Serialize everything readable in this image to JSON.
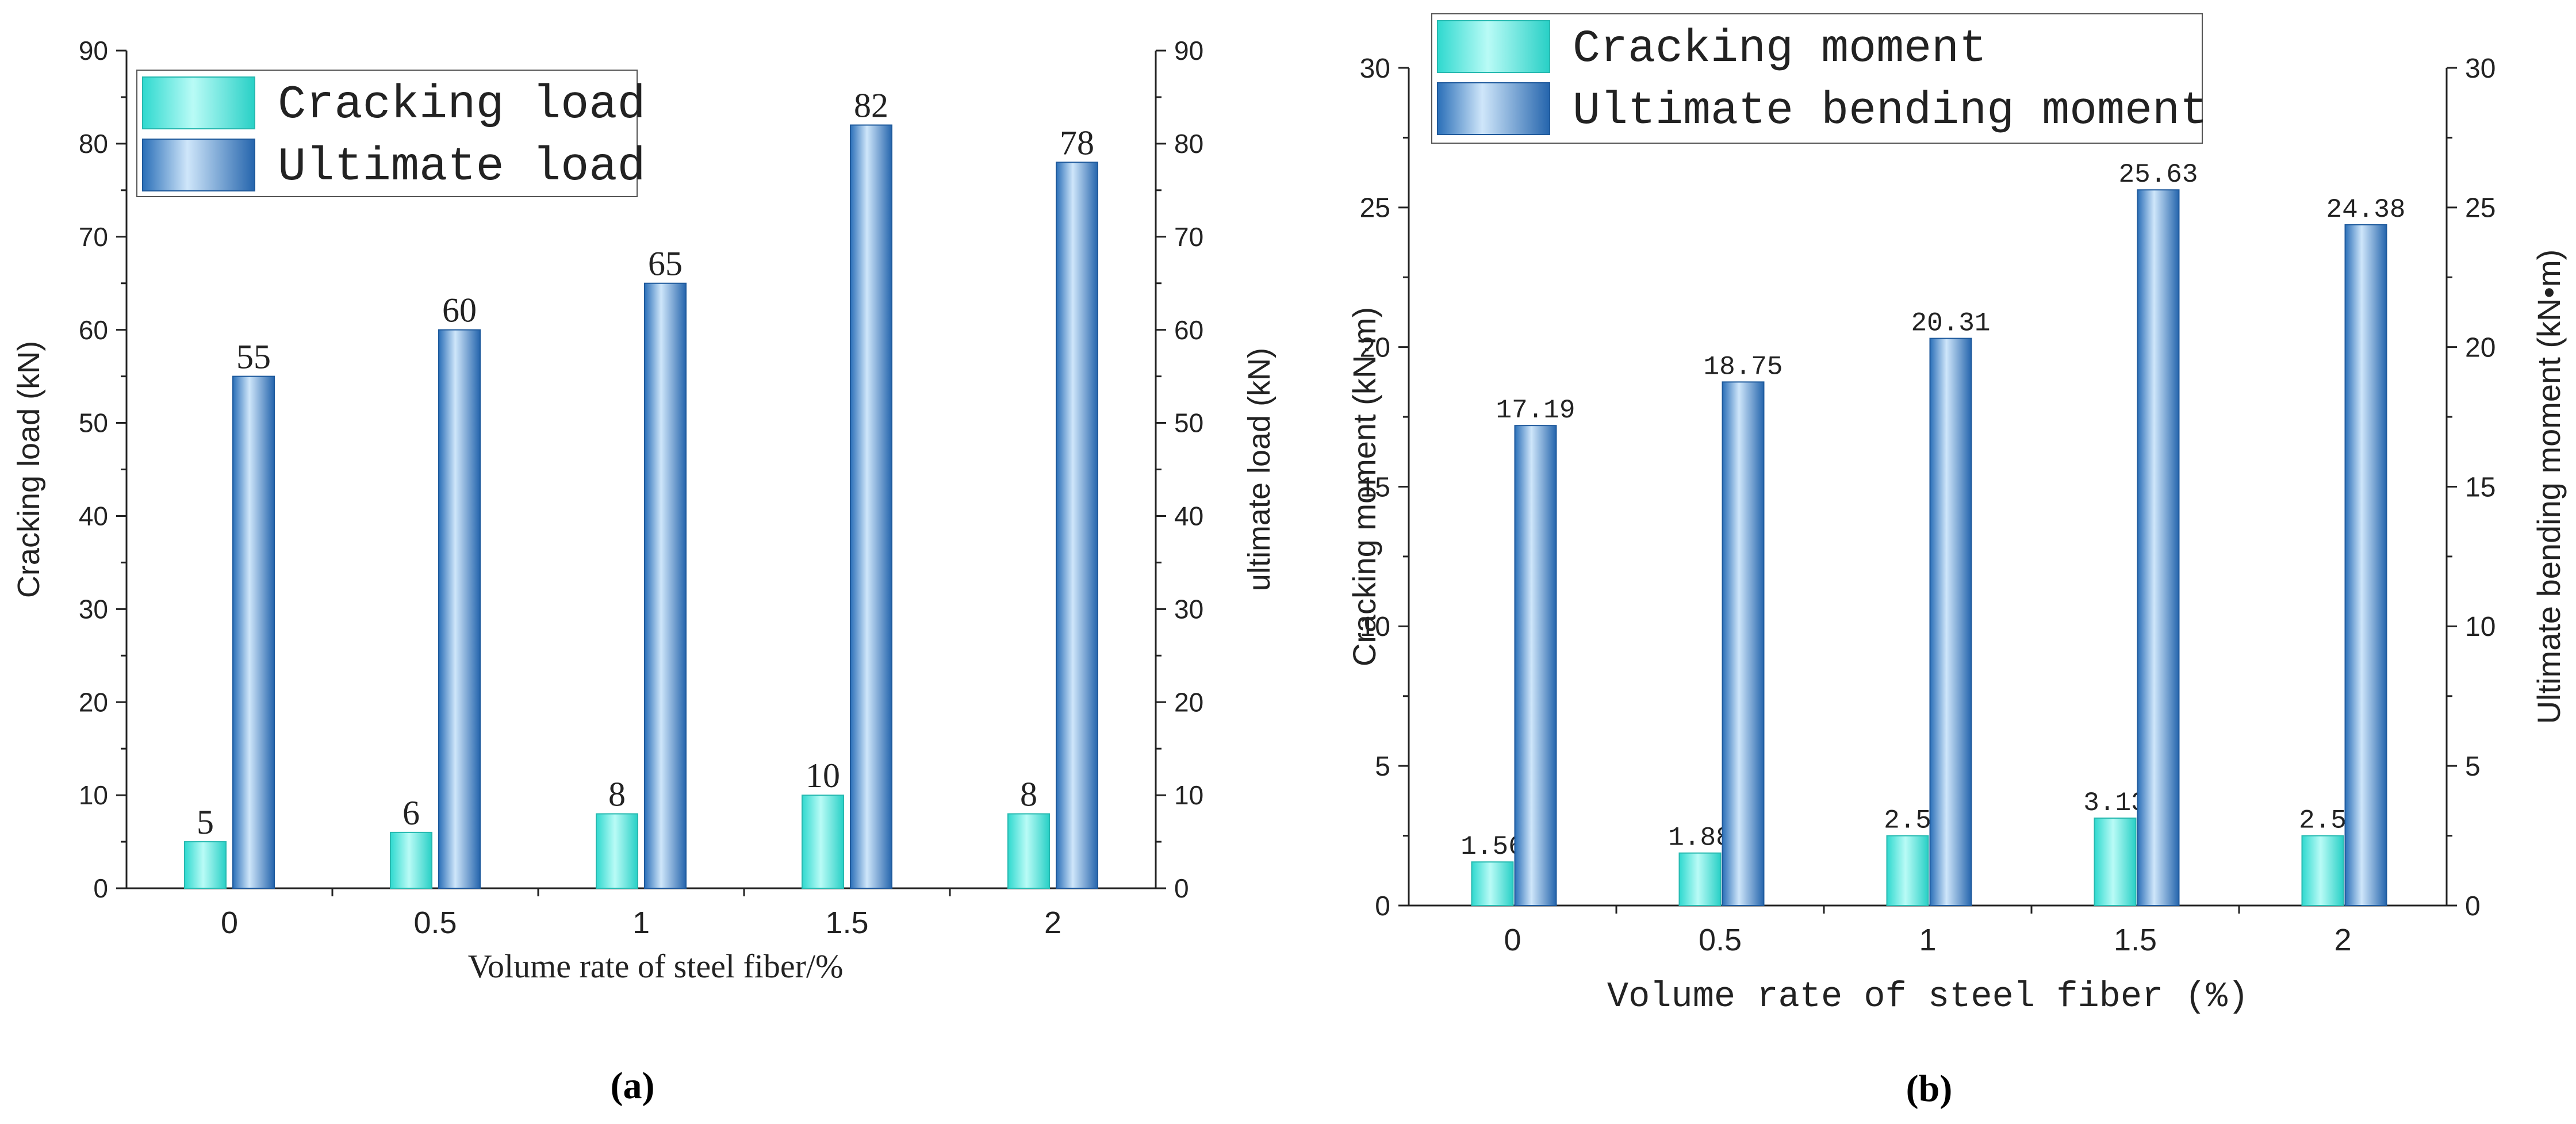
{
  "colors": {
    "cracking": "#3ee6dc",
    "ultimate": "#2f7bc4",
    "axis": "#222222"
  },
  "chart_data": [
    {
      "id": "a",
      "type": "bar",
      "panel_label": "(a)",
      "categories": [
        "0",
        "0.5",
        "1",
        "1.5",
        "2"
      ],
      "series": [
        {
          "name": "Cracking load",
          "axis": "left",
          "values": [
            5,
            6,
            8,
            10,
            8
          ],
          "labels": [
            "5",
            "6",
            "8",
            "10",
            "8"
          ]
        },
        {
          "name": "Ultimate load",
          "axis": "right",
          "values": [
            55,
            60,
            65,
            82,
            78
          ],
          "labels": [
            "55",
            "60",
            "65",
            "82",
            "78"
          ]
        }
      ],
      "xlabel": "Volume rate of steel fiber/%",
      "ylabel_left": "Cracking load (kN)",
      "ylabel_right": "ultimate load (kN)",
      "ylim": [
        0,
        90
      ],
      "yticks": [
        "0",
        "10",
        "20",
        "30",
        "40",
        "50",
        "60",
        "70",
        "80",
        "90"
      ],
      "legend_position": "top-left"
    },
    {
      "id": "b",
      "type": "bar",
      "panel_label": "(b)",
      "categories": [
        "0",
        "0.5",
        "1",
        "1.5",
        "2"
      ],
      "series": [
        {
          "name": "Cracking moment",
          "axis": "left",
          "values": [
            1.56,
            1.88,
            2.5,
            3.13,
            2.5
          ],
          "labels": [
            "1.56",
            "1.88",
            "2.5",
            "3.13",
            "2.5"
          ]
        },
        {
          "name": "Ultimate bending moment",
          "axis": "right",
          "values": [
            17.19,
            18.75,
            20.31,
            25.63,
            24.38
          ],
          "labels": [
            "17.19",
            "18.75",
            "20.31",
            "25.63",
            "24.38"
          ]
        }
      ],
      "xlabel": "Volume rate of steel fiber (%)",
      "ylabel_left": "Cracking moment (kN·m)",
      "ylabel_right": "Ultimate bending moment (kN•m)",
      "ylim": [
        0,
        30
      ],
      "yticks": [
        "0",
        "5",
        "10",
        "15",
        "20",
        "25",
        "30"
      ],
      "legend_position": "top-left"
    }
  ]
}
